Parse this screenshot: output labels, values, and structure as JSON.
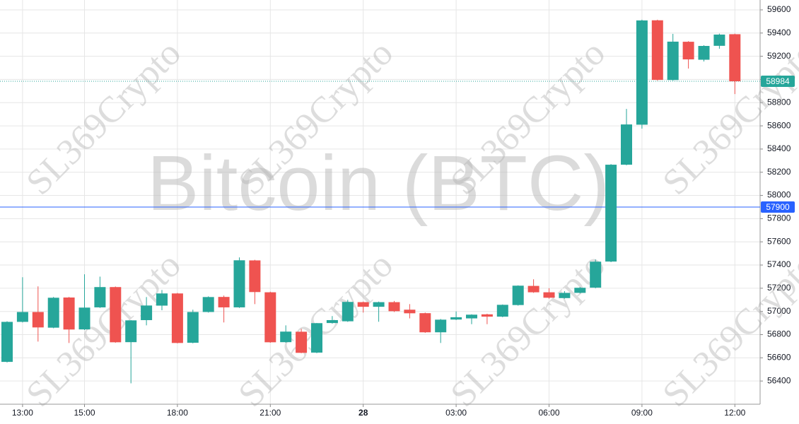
{
  "chart_data": {
    "type": "candlestick",
    "watermark": "Bitcoin (BTC)",
    "overlay_text": "SL369Crypto",
    "categories": [
      null,
      "13:00",
      null,
      null,
      null,
      "15:00",
      null,
      null,
      null,
      null,
      null,
      "18:00",
      null,
      null,
      null,
      null,
      null,
      "21:00",
      null,
      null,
      null,
      null,
      null,
      "28",
      null,
      null,
      null,
      null,
      null,
      "03:00",
      null,
      null,
      null,
      null,
      null,
      "06:00",
      null,
      null,
      null,
      null,
      null,
      "09:00",
      null,
      null,
      null,
      null,
      null,
      "12:00"
    ],
    "open": [
      56565,
      56910,
      56995,
      56860,
      57120,
      56845,
      57035,
      57210,
      56735,
      56925,
      57050,
      57155,
      56730,
      56995,
      57125,
      57035,
      57440,
      57165,
      56735,
      56825,
      56645,
      56900,
      56915,
      57080,
      57040,
      57080,
      57015,
      56985,
      56820,
      56930,
      56940,
      56975,
      56955,
      57055,
      57220,
      57165,
      57115,
      57160,
      57205,
      57430,
      58265,
      58610,
      59510,
      58995,
      59325,
      59170,
      59290,
      59390
    ],
    "high": [
      56915,
      57295,
      57216,
      57125,
      57125,
      57320,
      57300,
      57215,
      56925,
      57124,
      57185,
      57160,
      57015,
      57130,
      57137,
      57466,
      57445,
      57170,
      56880,
      56850,
      56900,
      56960,
      57100,
      57085,
      57085,
      57090,
      57063,
      56990,
      56935,
      57000,
      56975,
      56980,
      57060,
      57225,
      57277,
      57200,
      57175,
      57210,
      57448,
      58270,
      58746,
      59515,
      59515,
      59393,
      59330,
      59295,
      59395,
      59395
    ],
    "low": [
      56560,
      56905,
      56740,
      56855,
      56728,
      56840,
      57030,
      56730,
      56380,
      56880,
      57010,
      56725,
      56725,
      56990,
      56905,
      57030,
      57063,
      56730,
      56730,
      56640,
      56640,
      56895,
      56910,
      56990,
      56911,
      56995,
      56940,
      56815,
      56728,
      56925,
      56890,
      56890,
      56950,
      57050,
      57160,
      57110,
      57110,
      57155,
      57200,
      57425,
      58260,
      58576,
      58990,
      58990,
      59094,
      59155,
      59265,
      58874
    ],
    "close": [
      56910,
      56995,
      56862,
      57118,
      56844,
      57033,
      57210,
      56734,
      56923,
      57051,
      57155,
      56728,
      56995,
      57124,
      57035,
      57441,
      57167,
      56734,
      56826,
      56643,
      56899,
      56925,
      57082,
      57040,
      57080,
      57002,
      56984,
      56820,
      56929,
      56950,
      56972,
      56955,
      57057,
      57222,
      57165,
      57118,
      57160,
      57204,
      57429,
      58265,
      58612,
      59509,
      58996,
      59326,
      59173,
      59289,
      59387,
      58984
    ],
    "up_color": "#26a69a",
    "down_color": "#ef5350",
    "ylim": [
      56200,
      59685
    ],
    "yticks": [
      56400,
      56600,
      56800,
      57000,
      57200,
      57400,
      57600,
      57800,
      58000,
      58200,
      58400,
      58600,
      58800,
      59000,
      59200,
      59400,
      59600
    ],
    "grid": true,
    "price_lines": [
      {
        "value": 58984,
        "color": "#26a69a",
        "style": "dotted"
      },
      {
        "value": 57900,
        "color": "#2962ff",
        "style": "solid"
      }
    ]
  }
}
